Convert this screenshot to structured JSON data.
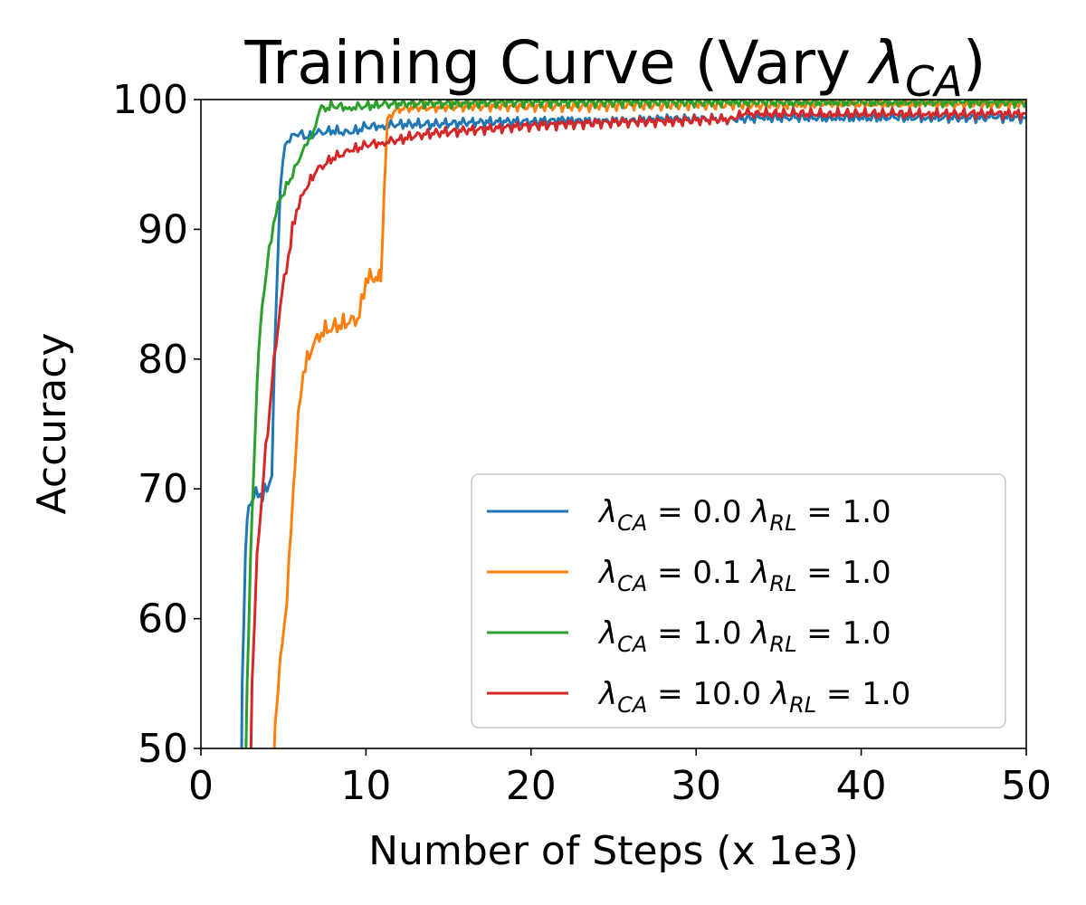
{
  "chart_data": {
    "type": "line",
    "title": "Training Curve (Vary λCA)",
    "title_parts": {
      "prefix": "Training Curve (Vary ",
      "symbol": "λ",
      "subscript": "CA",
      "suffix": ")"
    },
    "xlabel": "Number of Steps (x 1e3)",
    "ylabel": "Accuracy",
    "xlim": [
      0,
      50
    ],
    "ylim": [
      50,
      100
    ],
    "xticks": [
      "0",
      "10",
      "20",
      "30",
      "40",
      "50"
    ],
    "yticks": [
      "50",
      "60",
      "70",
      "80",
      "90",
      "100"
    ],
    "grid": false,
    "legend_position": "lower-right",
    "series": [
      {
        "name": "λCA = 0.0 λRL = 1.0",
        "label": {
          "ca": "0.0",
          "rl": "1.0"
        },
        "color": "#1f77b4",
        "points": [
          [
            2.4,
            40
          ],
          [
            2.5,
            55
          ],
          [
            2.7,
            65
          ],
          [
            2.9,
            68.7
          ],
          [
            3.2,
            69.3
          ],
          [
            3.6,
            69.6
          ],
          [
            4.0,
            69.8
          ],
          [
            4.3,
            71
          ],
          [
            4.5,
            82
          ],
          [
            4.8,
            93
          ],
          [
            5.1,
            96.5
          ],
          [
            5.5,
            97.3
          ],
          [
            6.0,
            97.4
          ],
          [
            6.5,
            97
          ],
          [
            7.0,
            97.4
          ],
          [
            8.0,
            97.6
          ],
          [
            9.0,
            97.4
          ],
          [
            10.0,
            97.9
          ],
          [
            11.0,
            98.0
          ],
          [
            12.0,
            98.1
          ],
          [
            14.0,
            98.1
          ],
          [
            16.0,
            98.2
          ],
          [
            18.0,
            98.3
          ],
          [
            20.0,
            98.3
          ],
          [
            22.0,
            98.4
          ],
          [
            24.0,
            98.3
          ],
          [
            26.0,
            98.4
          ],
          [
            28.0,
            98.5
          ],
          [
            30.0,
            98.5
          ],
          [
            32.0,
            98.5
          ],
          [
            34.0,
            98.6
          ],
          [
            36.0,
            98.6
          ],
          [
            38.0,
            98.6
          ],
          [
            40.0,
            98.6
          ],
          [
            42.0,
            98.6
          ],
          [
            44.0,
            98.6
          ],
          [
            46.0,
            98.6
          ],
          [
            48.0,
            98.6
          ],
          [
            50.0,
            98.6
          ]
        ]
      },
      {
        "name": "λCA = 0.1 λRL = 1.0",
        "label": {
          "ca": "0.1",
          "rl": "1.0"
        },
        "color": "#ff7f0e",
        "points": [
          [
            4.2,
            40
          ],
          [
            4.5,
            52
          ],
          [
            4.8,
            57
          ],
          [
            5.2,
            61
          ],
          [
            5.6,
            70
          ],
          [
            5.9,
            76
          ],
          [
            6.2,
            79
          ],
          [
            6.8,
            81
          ],
          [
            7.3,
            82
          ],
          [
            8.0,
            82.5
          ],
          [
            9.0,
            82.8
          ],
          [
            9.6,
            83.2
          ],
          [
            10.0,
            86.2
          ],
          [
            10.6,
            86.3
          ],
          [
            10.9,
            86.0
          ],
          [
            11.1,
            93
          ],
          [
            11.3,
            98.5
          ],
          [
            11.8,
            99.2
          ],
          [
            12.5,
            99.4
          ],
          [
            14.0,
            99.4
          ],
          [
            16.0,
            99.5
          ],
          [
            18.0,
            99.5
          ],
          [
            20.0,
            99.5
          ],
          [
            22.0,
            99.5
          ],
          [
            24.0,
            99.5
          ],
          [
            26.0,
            99.6
          ],
          [
            28.0,
            99.6
          ],
          [
            30.0,
            99.6
          ],
          [
            32.0,
            99.6
          ],
          [
            34.0,
            99.6
          ],
          [
            36.0,
            99.6
          ],
          [
            38.0,
            99.7
          ],
          [
            40.0,
            99.7
          ],
          [
            42.0,
            99.7
          ],
          [
            44.0,
            99.7
          ],
          [
            46.0,
            99.7
          ],
          [
            48.0,
            99.7
          ],
          [
            50.0,
            99.7
          ]
        ]
      },
      {
        "name": "λCA = 1.0 λRL = 1.0",
        "label": {
          "ca": "1.0",
          "rl": "1.0"
        },
        "color": "#2ca02c",
        "points": [
          [
            2.6,
            40
          ],
          [
            2.8,
            55
          ],
          [
            3.1,
            68
          ],
          [
            3.4,
            78
          ],
          [
            3.7,
            84
          ],
          [
            4.0,
            87
          ],
          [
            4.4,
            90.5
          ],
          [
            4.8,
            92.3
          ],
          [
            5.3,
            93.5
          ],
          [
            5.8,
            95
          ],
          [
            6.3,
            96.5
          ],
          [
            6.8,
            97.5
          ],
          [
            7.2,
            99.2
          ],
          [
            8.0,
            99.5
          ],
          [
            9.0,
            99.4
          ],
          [
            10.0,
            99.5
          ],
          [
            11.0,
            99.6
          ],
          [
            12.0,
            99.7
          ],
          [
            14.0,
            99.7
          ],
          [
            16.0,
            99.7
          ],
          [
            18.0,
            99.8
          ],
          [
            20.0,
            99.8
          ],
          [
            22.0,
            99.8
          ],
          [
            24.0,
            99.8
          ],
          [
            26.0,
            99.8
          ],
          [
            28.0,
            99.8
          ],
          [
            30.0,
            99.8
          ],
          [
            32.0,
            99.8
          ],
          [
            34.0,
            99.8
          ],
          [
            36.0,
            99.8
          ],
          [
            38.0,
            99.8
          ],
          [
            40.0,
            99.8
          ],
          [
            42.0,
            99.8
          ],
          [
            44.0,
            99.8
          ],
          [
            46.0,
            99.8
          ],
          [
            48.0,
            99.8
          ],
          [
            50.0,
            99.8
          ]
        ]
      },
      {
        "name": "λCA = 10.0 λRL = 1.0",
        "label": {
          "ca": "10.0",
          "rl": "1.0"
        },
        "color": "#d62728",
        "points": [
          [
            2.9,
            40
          ],
          [
            3.1,
            55
          ],
          [
            3.4,
            65
          ],
          [
            3.8,
            71
          ],
          [
            4.3,
            78
          ],
          [
            4.8,
            84
          ],
          [
            5.3,
            88
          ],
          [
            5.8,
            91.5
          ],
          [
            6.3,
            93
          ],
          [
            7.0,
            94.5
          ],
          [
            8.0,
            95.5
          ],
          [
            9.0,
            96.0
          ],
          [
            10.0,
            96.5
          ],
          [
            11.0,
            96.7
          ],
          [
            12.0,
            96.9
          ],
          [
            13.0,
            97.2
          ],
          [
            14.0,
            97.4
          ],
          [
            16.0,
            97.6
          ],
          [
            18.0,
            97.8
          ],
          [
            20.0,
            98.0
          ],
          [
            22.0,
            98.1
          ],
          [
            24.0,
            98.2
          ],
          [
            26.0,
            98.3
          ],
          [
            28.0,
            98.3
          ],
          [
            30.0,
            98.4
          ],
          [
            32.0,
            98.5
          ],
          [
            33.0,
            98.9
          ],
          [
            34.0,
            98.9
          ],
          [
            36.0,
            98.9
          ],
          [
            38.0,
            98.9
          ],
          [
            40.0,
            98.9
          ],
          [
            42.0,
            98.9
          ],
          [
            44.0,
            98.9
          ],
          [
            46.0,
            98.9
          ],
          [
            48.0,
            98.9
          ],
          [
            50.0,
            98.9
          ]
        ]
      }
    ]
  }
}
